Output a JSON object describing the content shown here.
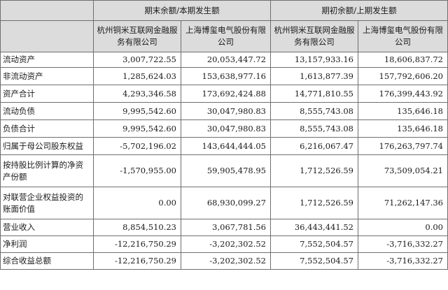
{
  "header": {
    "group_end": "期末余额/本期发生额",
    "group_begin": "期初余额/上期发生额",
    "sub_cols": [
      "杭州铜米互联网金融服务有限公司",
      "上海博玺电气股份有限公司",
      "杭州铜米互联网金融服务有限公司",
      "上海博玺电气股份有限公司"
    ]
  },
  "rows": [
    {
      "label": "流动资产",
      "values": [
        "3,007,722.55",
        "20,053,447.72",
        "13,157,933.16",
        "18,606,837.72"
      ]
    },
    {
      "label": "非流动资产",
      "values": [
        "1,285,624.03",
        "153,638,977.16",
        "1,613,877.39",
        "157,792,606.20"
      ]
    },
    {
      "label": "资产合计",
      "values": [
        "4,293,346.58",
        "173,692,424.88",
        "14,771,810.55",
        "176,399,443.92"
      ]
    },
    {
      "label": "流动负债",
      "values": [
        "9,995,542.60",
        "30,047,980.83",
        "8,555,743.08",
        "135,646.18"
      ]
    },
    {
      "label": "负债合计",
      "values": [
        "9,995,542.60",
        "30,047,980.83",
        "8,555,743.08",
        "135,646.18"
      ]
    },
    {
      "label": "归属于母公司股东权益",
      "values": [
        "-5,702,196.02",
        "143,644,444.05",
        "6,216,067.47",
        "176,263,797.74"
      ]
    },
    {
      "label": "按持股比例计算的净资产份额",
      "values": [
        "-1,570,955.00",
        "59,905,478.95",
        "1,712,526.59",
        "73,509,054.21"
      ]
    },
    {
      "label": "对联营企业权益投资的账面价值",
      "values": [
        "0.00",
        "68,930,099.27",
        "1,712,526.59",
        "71,262,147.36"
      ]
    },
    {
      "label": "营业收入",
      "values": [
        "8,854,510.23",
        "3,067,781.56",
        "36,443,441.52",
        "0.00"
      ]
    },
    {
      "label": "净利润",
      "values": [
        "-12,216,750.29",
        "-3,202,302.52",
        "7,552,504.57",
        "-3,716,332.27"
      ]
    },
    {
      "label": "综合收益总额",
      "values": [
        "-12,216,750.29",
        "-3,202,302.52",
        "7,552,504.57",
        "-3,716,332.27"
      ]
    }
  ]
}
